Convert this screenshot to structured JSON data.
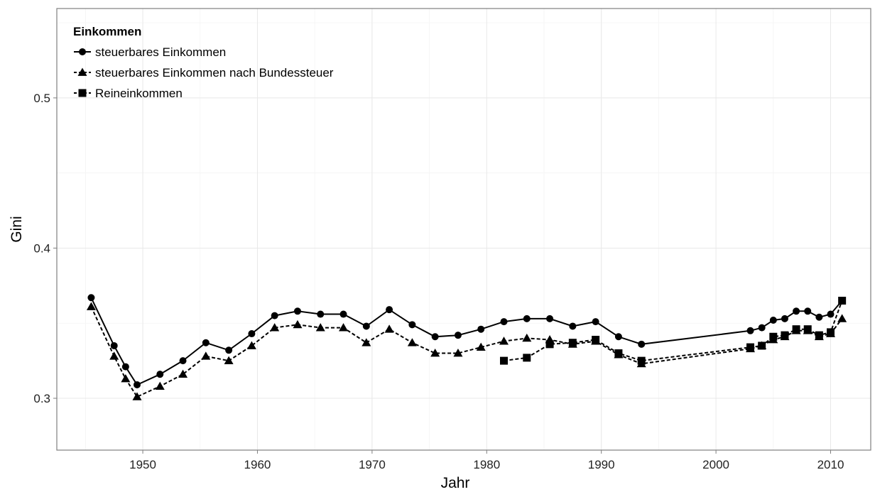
{
  "chart_data": {
    "type": "line",
    "xlabel": "Jahr",
    "ylabel": "Gini",
    "xlim": [
      1942.5,
      2013.5
    ],
    "ylim": [
      0.2655,
      0.5595
    ],
    "x_ticks": [
      1950,
      1960,
      1970,
      1980,
      1990,
      2000,
      2010
    ],
    "x_tick_labels": [
      "1950",
      "1960",
      "1970",
      "1980",
      "1990",
      "2000",
      "2010"
    ],
    "y_ticks": [
      0.3,
      0.4,
      0.5
    ],
    "y_tick_labels": [
      "0.3",
      "0.4",
      "0.5"
    ],
    "grid": true,
    "legend": {
      "title": "Einkommen",
      "placement": "top-left"
    },
    "series": [
      {
        "name": "steuerbares Einkommen",
        "marker": "circle",
        "line": "solid",
        "x": [
          1945.5,
          1947.5,
          1948.5,
          1949.5,
          1951.5,
          1953.5,
          1955.5,
          1957.5,
          1959.5,
          1961.5,
          1963.5,
          1965.5,
          1967.5,
          1969.5,
          1971.5,
          1973.5,
          1975.5,
          1977.5,
          1979.5,
          1981.5,
          1983.5,
          1985.5,
          1987.5,
          1989.5,
          1991.5,
          1993.5,
          2003,
          2004,
          2005,
          2006,
          2007,
          2008,
          2009,
          2010,
          2011
        ],
        "y": [
          0.367,
          0.335,
          0.321,
          0.309,
          0.316,
          0.325,
          0.337,
          0.332,
          0.343,
          0.355,
          0.358,
          0.356,
          0.356,
          0.348,
          0.359,
          0.349,
          0.341,
          0.342,
          0.346,
          0.351,
          0.353,
          0.353,
          0.348,
          0.351,
          0.341,
          0.336,
          0.345,
          0.347,
          0.352,
          0.353,
          0.358,
          0.358,
          0.354,
          0.356,
          0.365
        ]
      },
      {
        "name": "steuerbares Einkommen nach Bundessteuer",
        "marker": "triangle",
        "line": "dashed",
        "x": [
          1945.5,
          1947.5,
          1948.5,
          1949.5,
          1951.5,
          1953.5,
          1955.5,
          1957.5,
          1959.5,
          1961.5,
          1963.5,
          1965.5,
          1967.5,
          1969.5,
          1971.5,
          1973.5,
          1975.5,
          1977.5,
          1979.5,
          1981.5,
          1983.5,
          1985.5,
          1987.5,
          1989.5,
          1991.5,
          1993.5,
          2003,
          2004,
          2005,
          2006,
          2007,
          2008,
          2009,
          2010,
          2011
        ],
        "y": [
          0.361,
          0.328,
          0.313,
          0.301,
          0.308,
          0.316,
          0.328,
          0.325,
          0.335,
          0.347,
          0.349,
          0.347,
          0.347,
          0.337,
          0.346,
          0.337,
          0.33,
          0.33,
          0.334,
          0.338,
          0.34,
          0.339,
          0.336,
          0.338,
          0.329,
          0.323,
          0.333,
          0.335,
          0.339,
          0.341,
          0.345,
          0.345,
          0.341,
          0.343,
          0.353
        ]
      },
      {
        "name": "Reineinkommen",
        "marker": "square",
        "line": "dashed",
        "x": [
          1981.5,
          1983.5,
          1985.5,
          1987.5,
          1989.5,
          1991.5,
          1993.5,
          2003,
          2004,
          2005,
          2006,
          2007,
          2008,
          2009,
          2010,
          2011
        ],
        "y": [
          0.325,
          0.327,
          0.336,
          0.337,
          0.339,
          0.33,
          0.325,
          0.334,
          0.335,
          0.341,
          0.342,
          0.346,
          0.346,
          0.342,
          0.344,
          0.365
        ]
      }
    ]
  }
}
